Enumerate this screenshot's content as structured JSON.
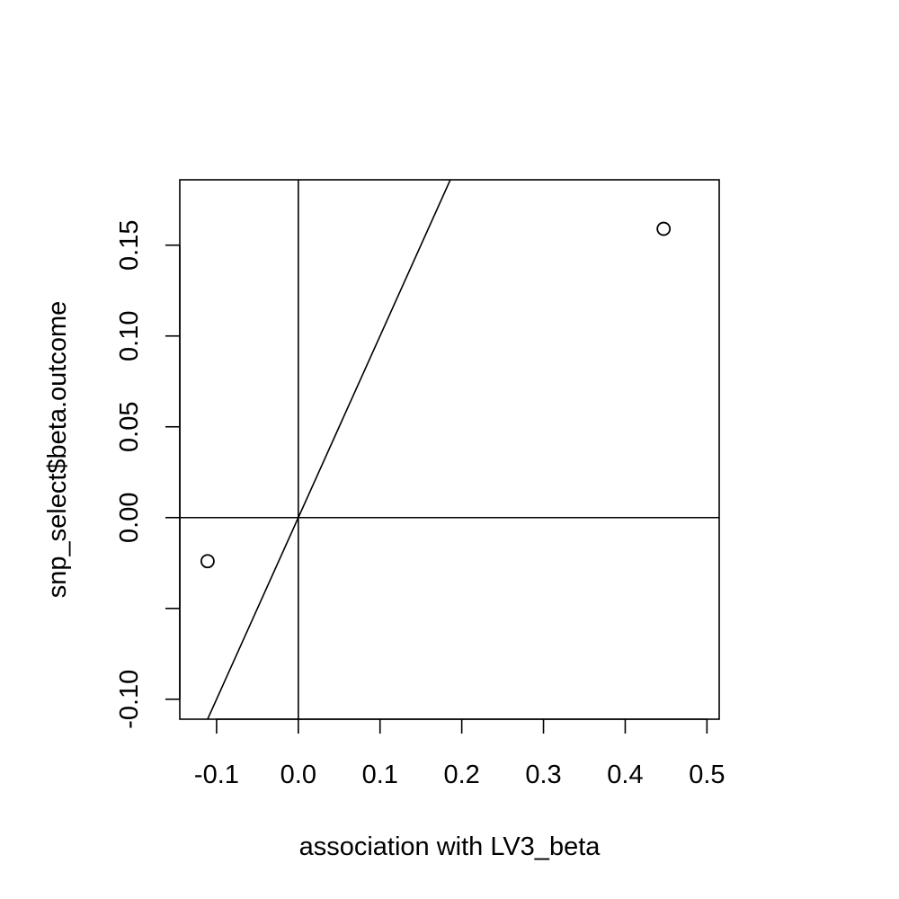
{
  "chart_data": {
    "type": "scatter",
    "title": "",
    "xlabel": "association with LV3_beta",
    "ylabel": "snp_select$beta.outcome",
    "xlim": [
      -0.145,
      0.515
    ],
    "ylim": [
      -0.111,
      0.186
    ],
    "x_ticks": [
      -0.1,
      0.0,
      0.1,
      0.2,
      0.3,
      0.4,
      0.5
    ],
    "x_tick_labels": [
      "-0.1",
      "0.0",
      "0.1",
      "0.2",
      "0.3",
      "0.4",
      "0.5"
    ],
    "y_ticks": [
      -0.1,
      -0.05,
      0.0,
      0.05,
      0.1,
      0.15
    ],
    "y_tick_labels": [
      "-0.10",
      "",
      "0.00",
      "0.05",
      "0.10",
      "0.15"
    ],
    "points": [
      {
        "x": -0.111,
        "y": -0.024
      },
      {
        "x": 0.447,
        "y": 0.159
      }
    ],
    "reference_lines": {
      "vertical_x": 0,
      "horizontal_y": 0,
      "fit_line": {
        "intercept": 0,
        "slope": 1.0
      }
    },
    "grid": false,
    "legend": "none"
  }
}
